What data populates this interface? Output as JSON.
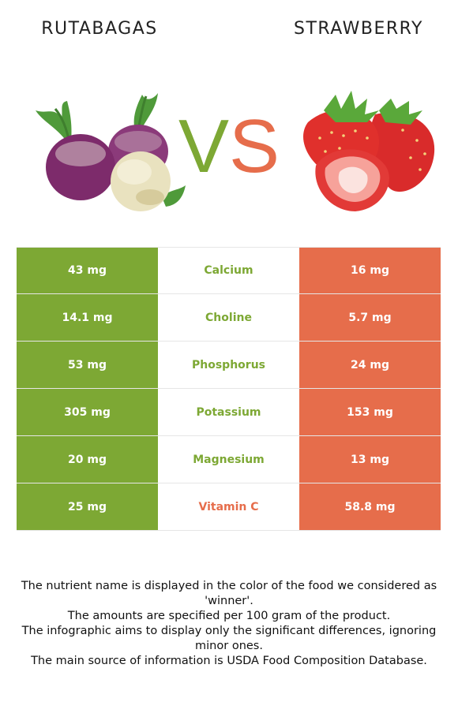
{
  "header": {
    "left_food": "RUTABAGAS",
    "right_food": "STRAWBERRY",
    "vs_v": "V",
    "vs_s": "S"
  },
  "colors": {
    "left": "#7da834",
    "right": "#e66d4b",
    "neutral": "#ffffff"
  },
  "rows": [
    {
      "left": "43 mg",
      "nutrient": "Calcium",
      "right": "16 mg",
      "winner": "left"
    },
    {
      "left": "14.1 mg",
      "nutrient": "Choline",
      "right": "5.7 mg",
      "winner": "left"
    },
    {
      "left": "53 mg",
      "nutrient": "Phosphorus",
      "right": "24 mg",
      "winner": "left"
    },
    {
      "left": "305 mg",
      "nutrient": "Potassium",
      "right": "153 mg",
      "winner": "left"
    },
    {
      "left": "20 mg",
      "nutrient": "Magnesium",
      "right": "13 mg",
      "winner": "left"
    },
    {
      "left": "25 mg",
      "nutrient": "Vitamin C",
      "right": "58.8 mg",
      "winner": "right"
    }
  ],
  "notes": [
    "The nutrient name is displayed in the color of the food we considered as 'winner'.",
    "The amounts are specified per 100 gram of the product.",
    "The infographic aims to display only the significant differences, ignoring minor ones.",
    "The main source of information is USDA Food Composition Database."
  ]
}
